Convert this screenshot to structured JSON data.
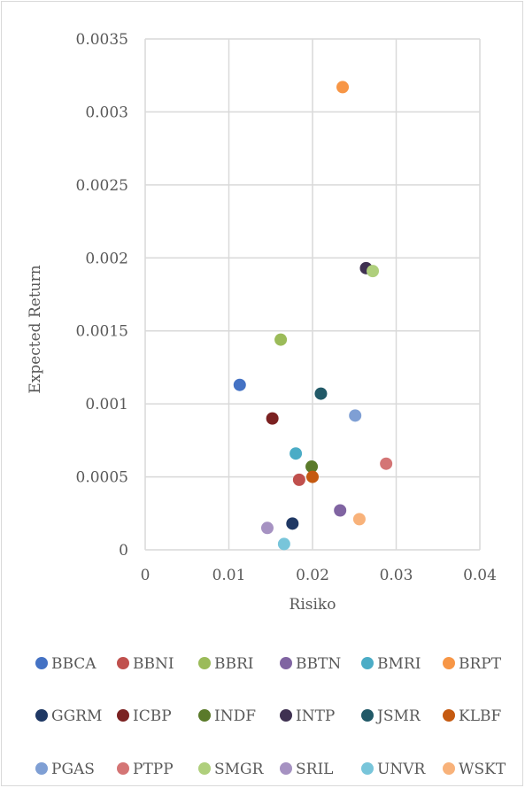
{
  "chart_data": {
    "type": "scatter",
    "title": "",
    "xlabel": "Risiko",
    "ylabel": "Expected Return",
    "xlim": [
      0,
      0.04
    ],
    "ylim": [
      0,
      0.0035
    ],
    "x_ticks": [
      "0",
      "0.01",
      "0.02",
      "0.03",
      "0.04"
    ],
    "y_ticks": [
      "0",
      "0.0005",
      "0.001",
      "0.0015",
      "0.002",
      "0.0025",
      "0.003",
      "0.0035"
    ],
    "grid": true,
    "legend_position": "bottom",
    "series": [
      {
        "name": "BBCA",
        "color": "#4472c4",
        "x": 0.0113,
        "y": 0.00113
      },
      {
        "name": "BBNI",
        "color": "#c0504d",
        "x": 0.0184,
        "y": 0.00048
      },
      {
        "name": "BBRI",
        "color": "#9bbb59",
        "x": 0.0162,
        "y": 0.00144
      },
      {
        "name": "BBTN",
        "color": "#8064a2",
        "x": 0.0233,
        "y": 0.00027
      },
      {
        "name": "BMRI",
        "color": "#4bacc6",
        "x": 0.018,
        "y": 0.00066
      },
      {
        "name": "BRPT",
        "color": "#f79646",
        "x": 0.0236,
        "y": 0.00317
      },
      {
        "name": "GGRM",
        "color": "#1f3864",
        "x": 0.0176,
        "y": 0.00018
      },
      {
        "name": "ICBP",
        "color": "#7b2121",
        "x": 0.0152,
        "y": 0.0009
      },
      {
        "name": "INDF",
        "color": "#5a7a2a",
        "x": 0.0199,
        "y": 0.00057
      },
      {
        "name": "INTP",
        "color": "#3f3151",
        "x": 0.0264,
        "y": 0.00193
      },
      {
        "name": "JSMR",
        "color": "#215967",
        "x": 0.021,
        "y": 0.00107
      },
      {
        "name": "KLBF",
        "color": "#c55a11",
        "x": 0.02,
        "y": 0.0005
      },
      {
        "name": "PGAS",
        "color": "#7f9fd4",
        "x": 0.0251,
        "y": 0.00092
      },
      {
        "name": "PTPP",
        "color": "#d47575",
        "x": 0.0288,
        "y": 0.00059
      },
      {
        "name": "SMGR",
        "color": "#afcf7c",
        "x": 0.0272,
        "y": 0.00191
      },
      {
        "name": "SRIL",
        "color": "#a692c2",
        "x": 0.0146,
        "y": 0.00015
      },
      {
        "name": "UNVR",
        "color": "#78c5da",
        "x": 0.0166,
        "y": 4e-05
      },
      {
        "name": "WSKT",
        "color": "#f8b27a",
        "x": 0.0256,
        "y": 0.00021
      }
    ]
  }
}
